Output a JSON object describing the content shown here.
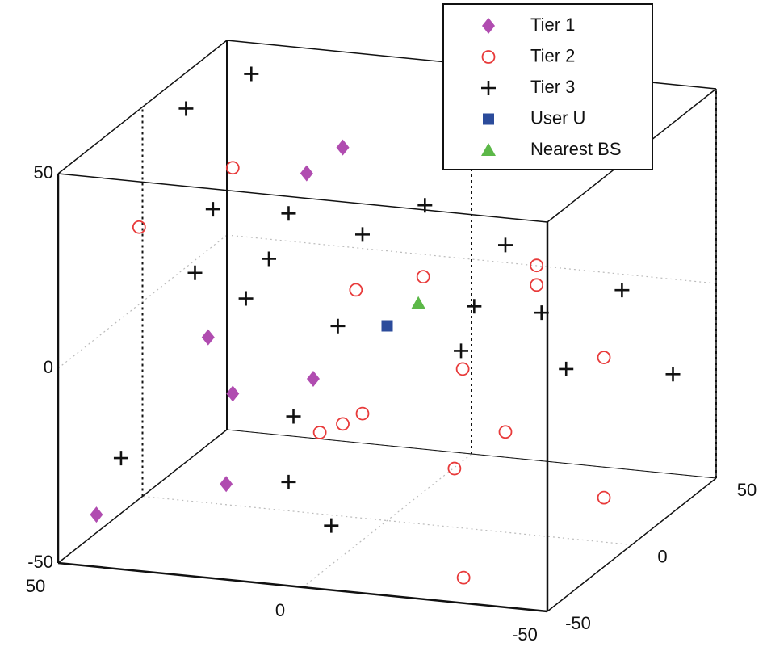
{
  "chart_data": {
    "type": "scatter3d",
    "xlim": [
      -50,
      50
    ],
    "ylim": [
      -50,
      50
    ],
    "zlim": [
      -50,
      50
    ],
    "xticks": [
      -50,
      0,
      50
    ],
    "yticks": [
      -50,
      0,
      50
    ],
    "zticks": [
      -50,
      0,
      50
    ],
    "grid": true,
    "legend": "top-right",
    "series": [
      {
        "name": "Tier 1",
        "color": "#b04cb0",
        "marker": "diamond",
        "x": [
          7,
          13,
          29,
          12,
          25,
          26,
          47
        ],
        "y": [
          -6,
          -10,
          -22,
          -9,
          -19,
          -20,
          -36
        ],
        "z": [
          47,
          41,
          1,
          -12,
          -14,
          -37,
          -42
        ]
      },
      {
        "name": "Tier 2",
        "color": "#e83a3a",
        "marker": "circle",
        "x": [
          25,
          40,
          5,
          -6,
          -24,
          -24,
          -35,
          -12,
          4,
          7,
          11,
          -19,
          -11,
          -35,
          -27
        ],
        "y": [
          -19,
          -31,
          -4,
          4,
          19,
          19,
          27,
          10,
          -3,
          -6,
          -8,
          15,
          8,
          27,
          -33
        ],
        "z": [
          44,
          31,
          10,
          12,
          12,
          7,
          -13,
          -13,
          -22,
          -24,
          -26,
          -30,
          -38,
          -49,
          -50
        ]
      },
      {
        "name": "Tier 3",
        "color": "#111111",
        "marker": "plus",
        "x": [
          45,
          48,
          28,
          16,
          -6,
          4,
          -19,
          19,
          31,
          23,
          -14,
          -25,
          -38,
          8,
          -12,
          -29,
          -46,
          15,
          43,
          16,
          9
        ],
        "y": [
          50,
          20,
          -22,
          -12,
          5,
          -3,
          15,
          -15,
          -24,
          -17,
          11,
          19,
          29,
          -6,
          9,
          22,
          36,
          -12,
          -33,
          -12,
          -7
        ],
        "z": [
          42,
          43,
          34,
          31,
          30,
          24,
          18,
          20,
          18,
          10,
          3,
          0,
          4,
          1,
          -8,
          -15,
          -19,
          -21,
          -28,
          -38,
          -50
        ]
      },
      {
        "name": "User U",
        "color": "#2b4b9b",
        "marker": "square",
        "x": [
          0
        ],
        "y": [
          0
        ],
        "z": [
          0
        ]
      },
      {
        "name": "Nearest BS",
        "color": "#5cb848",
        "marker": "triangle",
        "x": [
          -5
        ],
        "y": [
          4
        ],
        "z": [
          5
        ]
      }
    ]
  }
}
